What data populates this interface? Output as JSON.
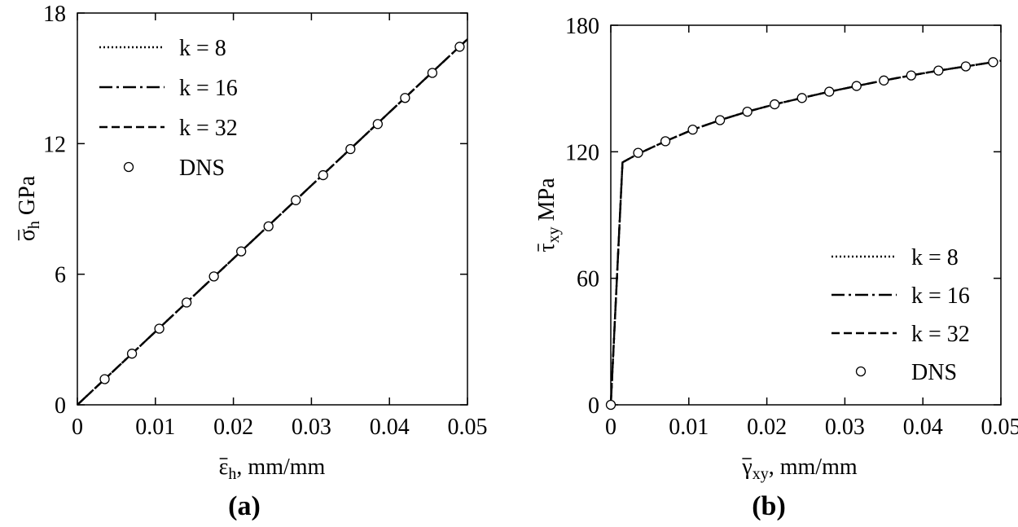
{
  "chart_data": [
    {
      "type": "line",
      "panel_label": "(a)",
      "xlabel": {
        "sym": "ε",
        "sub": "h",
        "unit": ", mm/mm"
      },
      "ylabel": {
        "sym": "σ",
        "sub": "h",
        "unit": " GPa"
      },
      "xlim": [
        0,
        0.05
      ],
      "ylim": [
        0,
        18
      ],
      "xticks": [
        0,
        0.01,
        0.02,
        0.03,
        0.04,
        0.05
      ],
      "xtick_labels": [
        "0",
        "0.01",
        "0.02",
        "0.03",
        "0.04",
        "0.05"
      ],
      "yticks": [
        0,
        6,
        12,
        18
      ],
      "ytick_labels": [
        "0",
        "6",
        "12",
        "18"
      ],
      "legend_position": "top-left",
      "series": [
        {
          "name": "k = 8",
          "style": "dotted",
          "x": [
            0,
            0.05
          ],
          "y": [
            0,
            16.8
          ]
        },
        {
          "name": "k = 16",
          "style": "dashdot",
          "x": [
            0,
            0.05
          ],
          "y": [
            0,
            16.8
          ]
        },
        {
          "name": "k = 32",
          "style": "dashed",
          "x": [
            0,
            0.05
          ],
          "y": [
            0,
            16.8
          ]
        },
        {
          "name": "DNS",
          "style": "markers",
          "x": [
            0.0035,
            0.007,
            0.0105,
            0.014,
            0.0175,
            0.021,
            0.0245,
            0.028,
            0.0315,
            0.035,
            0.0385,
            0.042,
            0.0455,
            0.049
          ],
          "y": [
            1.18,
            2.35,
            3.5,
            4.7,
            5.9,
            7.05,
            8.2,
            9.4,
            10.55,
            11.75,
            12.9,
            14.1,
            15.25,
            16.45
          ]
        }
      ]
    },
    {
      "type": "line",
      "panel_label": "(b)",
      "xlabel": {
        "sym": "γ",
        "sub": "xy",
        "unit": ", mm/mm"
      },
      "ylabel": {
        "sym": "τ",
        "sub": "xy",
        "unit": " MPa"
      },
      "xlim": [
        0,
        0.05
      ],
      "ylim": [
        0,
        180
      ],
      "xticks": [
        0,
        0.01,
        0.02,
        0.03,
        0.04,
        0.05
      ],
      "xtick_labels": [
        "0",
        "0.01",
        "0.02",
        "0.03",
        "0.04",
        "0.05"
      ],
      "yticks": [
        0,
        60,
        120,
        180
      ],
      "ytick_labels": [
        "0",
        "60",
        "120",
        "180"
      ],
      "legend_position": "bottom-right",
      "series": [
        {
          "name": "k = 8",
          "style": "dotted",
          "x": [
            0,
            0.0015,
            0.0035,
            0.007,
            0.0105,
            0.014,
            0.0175,
            0.021,
            0.0245,
            0.028,
            0.0315,
            0.035,
            0.0385,
            0.042,
            0.0455,
            0.049,
            0.05
          ],
          "y": [
            0,
            115,
            119,
            125,
            130.5,
            135,
            139,
            142.5,
            145.5,
            148.5,
            151.2,
            153.8,
            156.2,
            158.5,
            160.5,
            162.5,
            163.2
          ]
        },
        {
          "name": "k = 16",
          "style": "dashdot",
          "x": [
            0,
            0.0015,
            0.0035,
            0.007,
            0.0105,
            0.014,
            0.0175,
            0.021,
            0.0245,
            0.028,
            0.0315,
            0.035,
            0.0385,
            0.042,
            0.0455,
            0.049,
            0.05
          ],
          "y": [
            0,
            115,
            119,
            125,
            130.5,
            135,
            139,
            142.5,
            145.5,
            148.5,
            151.2,
            153.8,
            156.2,
            158.5,
            160.5,
            162.5,
            163.2
          ]
        },
        {
          "name": "k = 32",
          "style": "dashed",
          "x": [
            0,
            0.0015,
            0.0035,
            0.007,
            0.0105,
            0.014,
            0.0175,
            0.021,
            0.0245,
            0.028,
            0.0315,
            0.035,
            0.0385,
            0.042,
            0.0455,
            0.049,
            0.05
          ],
          "y": [
            0,
            115,
            119,
            125,
            130.5,
            135,
            139,
            142.5,
            145.5,
            148.5,
            151.2,
            153.8,
            156.2,
            158.5,
            160.5,
            162.5,
            163.2
          ]
        },
        {
          "name": "DNS",
          "style": "markers",
          "x": [
            0,
            0.0035,
            0.007,
            0.0105,
            0.014,
            0.0175,
            0.021,
            0.0245,
            0.028,
            0.0315,
            0.035,
            0.0385,
            0.042,
            0.0455,
            0.049
          ],
          "y": [
            0,
            119.5,
            125,
            130.5,
            135,
            139,
            142.5,
            145.5,
            148.5,
            151.2,
            153.8,
            156.2,
            158.5,
            160.5,
            162.5
          ]
        }
      ]
    }
  ]
}
